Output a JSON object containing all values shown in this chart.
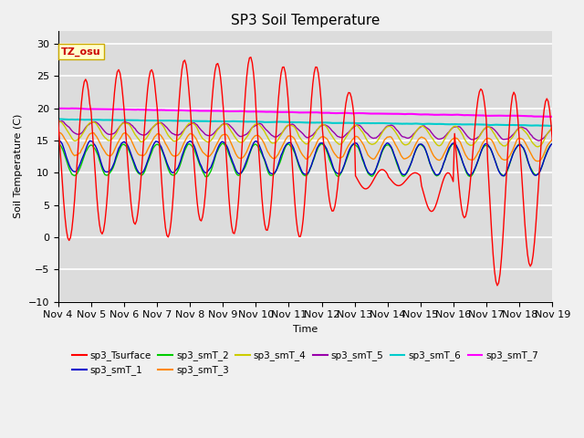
{
  "title": "SP3 Soil Temperature",
  "ylabel": "Soil Temperature (C)",
  "xlabel": "Time",
  "ylim": [
    -10,
    32
  ],
  "xlim_days": [
    4,
    19
  ],
  "plot_bg": "#dcdcdc",
  "fig_bg": "#f0f0f0",
  "grid_color": "white",
  "annotation_text": "TZ_osu",
  "annotation_color": "#cc0000",
  "annotation_bg": "#ffffcc",
  "annotation_border": "#ccaa00",
  "tick_labels": [
    "Nov 4",
    "Nov 5",
    "Nov 6",
    "Nov 7",
    "Nov 8",
    "Nov 9",
    "Nov 10",
    "Nov 11",
    "Nov 12",
    "Nov 13",
    "Nov 14",
    "Nov 15",
    "Nov 16",
    "Nov 17",
    "Nov 18",
    "Nov 19"
  ],
  "series": {
    "sp3_Tsurface": {
      "color": "#ff0000",
      "linewidth": 1.0
    },
    "sp3_smT_1": {
      "color": "#0000cc",
      "linewidth": 1.0
    },
    "sp3_smT_2": {
      "color": "#00cc00",
      "linewidth": 1.0
    },
    "sp3_smT_3": {
      "color": "#ff8800",
      "linewidth": 1.0
    },
    "sp3_smT_4": {
      "color": "#cccc00",
      "linewidth": 1.0
    },
    "sp3_smT_5": {
      "color": "#9900aa",
      "linewidth": 1.0
    },
    "sp3_smT_6": {
      "color": "#00cccc",
      "linewidth": 1.5
    },
    "sp3_smT_7": {
      "color": "#ff00ff",
      "linewidth": 1.5
    }
  }
}
